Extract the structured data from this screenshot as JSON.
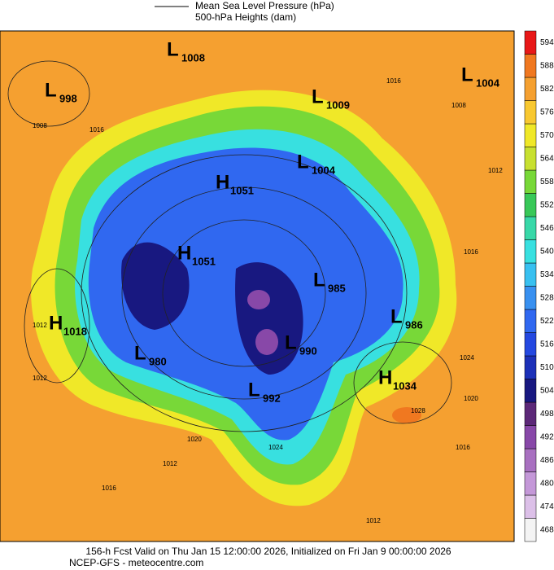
{
  "header": {
    "lines": [
      "Mean Sea Level Pressure (hPa)",
      "500-hPa Heights (dam)"
    ]
  },
  "colorbar": {
    "levels": [
      468,
      474,
      480,
      486,
      492,
      498,
      504,
      510,
      516,
      522,
      528,
      534,
      540,
      546,
      552,
      558,
      564,
      570,
      576,
      582,
      588,
      594
    ],
    "colors": [
      "#f4f4f4",
      "#dcc0e8",
      "#c498d8",
      "#a870c0",
      "#8848a8",
      "#5c2878",
      "#181880",
      "#1c30b8",
      "#2448e0",
      "#3068f0",
      "#3890f0",
      "#38c0f0",
      "#38e0e0",
      "#38d8a8",
      "#38c858",
      "#78d838",
      "#c8e030",
      "#f0e828",
      "#f8c830",
      "#f5a030",
      "#f07820",
      "#e81818"
    ]
  },
  "centers": [
    {
      "type": "L",
      "value": 1008
    },
    {
      "type": "L",
      "value": 998
    },
    {
      "type": "L",
      "value": 1009
    },
    {
      "type": "L",
      "value": 1004
    },
    {
      "type": "L",
      "value": 1004
    },
    {
      "type": "H",
      "value": 1051
    },
    {
      "type": "H",
      "value": 1051
    },
    {
      "type": "L",
      "value": 985
    },
    {
      "type": "H",
      "value": 1018
    },
    {
      "type": "L",
      "value": 986
    },
    {
      "type": "L",
      "value": 980
    },
    {
      "type": "L",
      "value": 990
    },
    {
      "type": "H",
      "value": 1034
    },
    {
      "type": "L",
      "value": 992
    }
  ],
  "contour_labels": [
    1016,
    1008,
    1008,
    1012,
    1016,
    1012,
    1012,
    1024,
    1020,
    1016,
    1012,
    1028,
    1020,
    1016,
    1012,
    1024,
    1016
  ],
  "footer": {
    "lines": [
      "156-h Fcst Valid on Thu Jan 15 12:00:00 2026, Initialized on Fri Jan  9 00:00:00 2026",
      "NCEP-GFS  - meteocentre.com"
    ]
  }
}
